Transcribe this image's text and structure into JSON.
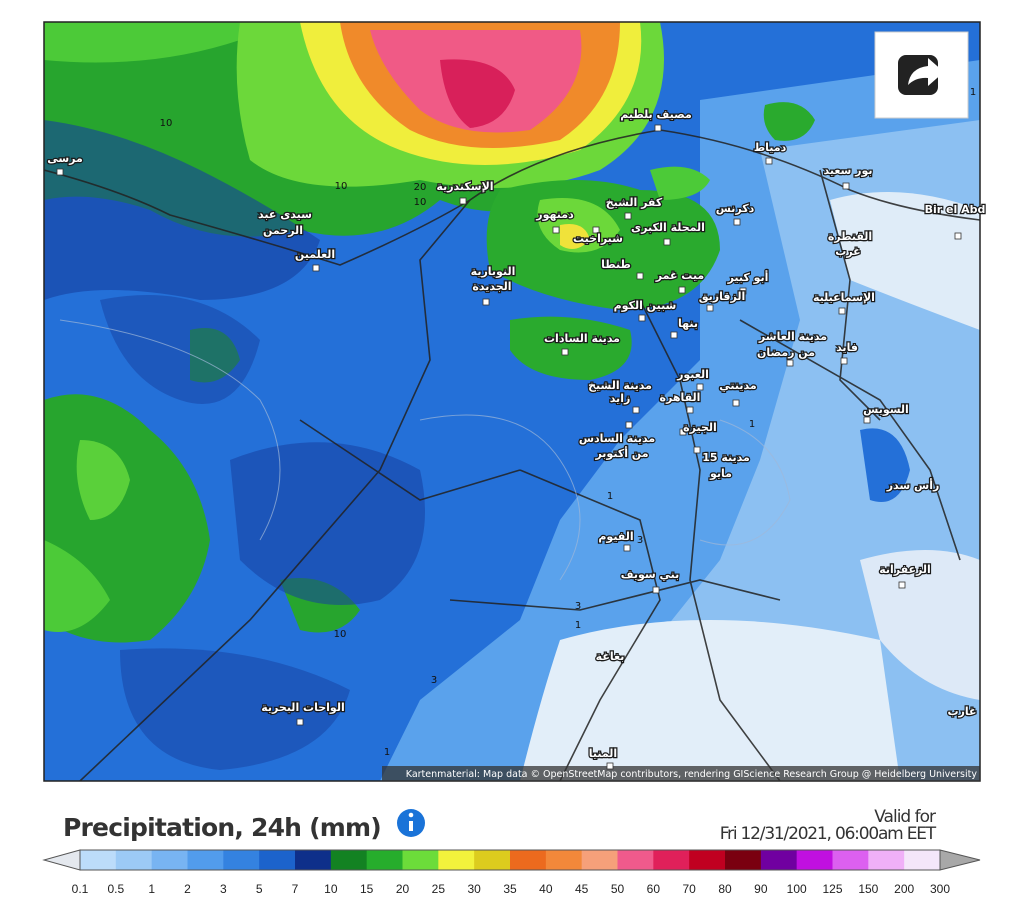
{
  "map": {
    "cities": [
      "مرسى",
      "سيدى عبد",
      "الرحمن",
      "العلمين",
      "الإسكندرية",
      "دمنهور",
      "كفر الشيخ",
      "مصيف بلطيم",
      "دمياط",
      "بور سعيد",
      "دكرنس",
      "المحلة الكبرى",
      "شبراخيت",
      "طنطا",
      "ميت غمر",
      "أبو كبير",
      "الزقازيق",
      "القنطرة",
      "غرب",
      "الإسماعيلية",
      "النوبارية",
      "الجديدة",
      "شبين الكوم",
      "بنها",
      "مدينة السادات",
      "مدينة العاشر",
      "من رمضان",
      "فايد",
      "العبور",
      "مدينة الشيخ",
      "زايد",
      "القاهرة",
      "مدينتي",
      "الجيزة",
      "السويس",
      "مدينة السادس",
      "من أكتوبر",
      "مدينة 15",
      "مايو",
      "رأس سدر",
      "الفيوم",
      "بني سويف",
      "الزعفرانة",
      "بغاغة",
      "الواحات البحرية",
      "المنيا",
      "Bir el Abd",
      "غارب"
    ],
    "contour_labels": [
      "10",
      "10",
      "20",
      "10",
      "10",
      "1",
      "1",
      "1",
      "3",
      "3",
      "3",
      "1",
      "1"
    ],
    "attribution": "Kartenmaterial: Map data © OpenStreetMap contributors, rendering GIScience Research Group @ Heidelberg University"
  },
  "legend": {
    "title": "Precipitation, 24h (mm)",
    "valid_label": "Valid for",
    "valid_time": "Fri 12/31/2021, 06:00am EET",
    "labels": [
      "0.1",
      "0.5",
      "1",
      "2",
      "3",
      "5",
      "7",
      "10",
      "15",
      "20",
      "25",
      "30",
      "35",
      "40",
      "45",
      "50",
      "60",
      "70",
      "80",
      "90",
      "100",
      "125",
      "150",
      "200",
      "300"
    ],
    "colors": [
      "#bcdcfa",
      "#9ccaf6",
      "#78b4f2",
      "#529cec",
      "#3482e0",
      "#1c63cc",
      "#0e2f8a",
      "#138222",
      "#26ad2c",
      "#6cdc3a",
      "#f2f23c",
      "#dccc1e",
      "#ec6a1e",
      "#f2883a",
      "#f6a07a",
      "#f05a8c",
      "#e0205a",
      "#c00020",
      "#7a0010",
      "#7000a0",
      "#c010e0",
      "#dc60f0",
      "#f0b0f8",
      "#f4e6fa"
    ],
    "under_color": "#e4e8ee",
    "over_color": "#a8a8a8"
  }
}
